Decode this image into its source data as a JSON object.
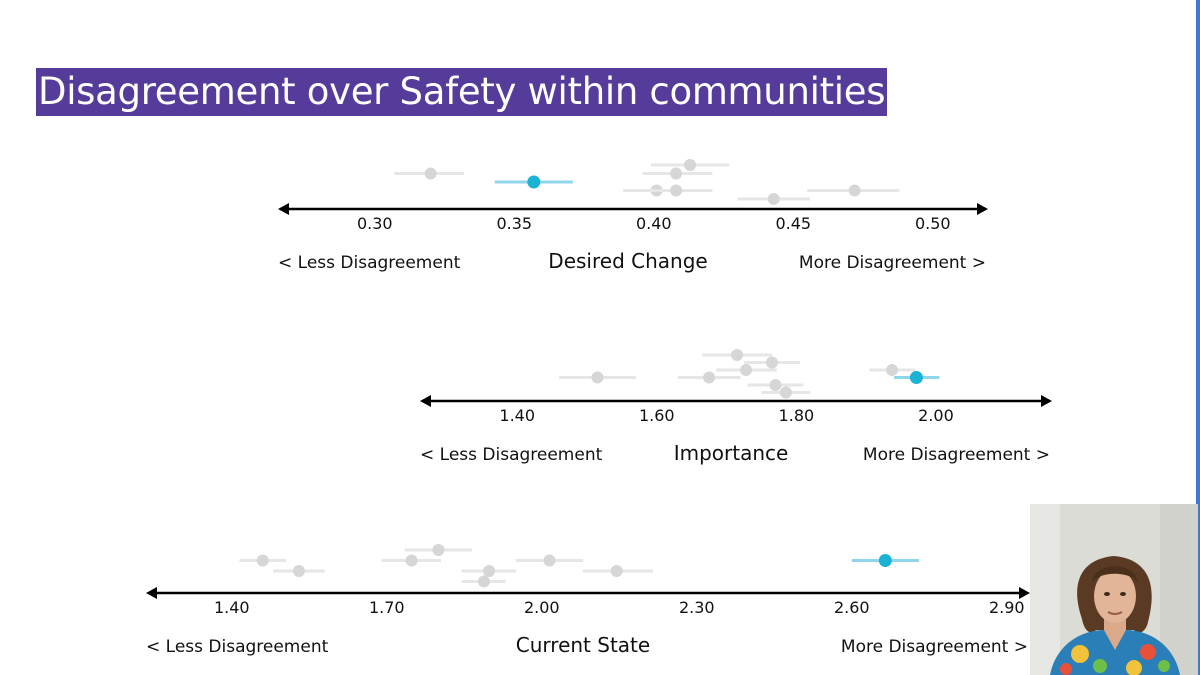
{
  "slide": {
    "title": "Disagreement over Safety within communities"
  },
  "colors": {
    "title_bg": "#553c9a",
    "title_text": "#ffffff",
    "highlight_point": "#1ab3d4",
    "highlight_bar": "#8fd6ea",
    "other_point": "#d6d6d6",
    "other_bar": "#e6e6e6",
    "axis": "#000000"
  },
  "chart_data": [
    {
      "type": "scatter",
      "title": "Desired Change",
      "left_label": "< Less Disagreement",
      "right_label": "More Disagreement >",
      "xlim": [
        0.2653,
        0.5198
      ],
      "ticks": [
        "0.30",
        "0.35",
        "0.40",
        "0.45",
        "0.50"
      ],
      "tick_values": [
        0.3,
        0.35,
        0.4,
        0.45,
        0.5
      ],
      "points": [
        {
          "x": 0.32,
          "lo": 0.307,
          "hi": 0.332,
          "row": 1
        },
        {
          "x": 0.357,
          "lo": 0.343,
          "hi": 0.371,
          "row": 2,
          "highlight": true
        },
        {
          "x": 0.413,
          "lo": 0.399,
          "hi": 0.427,
          "row": 0
        },
        {
          "x": 0.408,
          "lo": 0.396,
          "hi": 0.421,
          "row": 1
        },
        {
          "x": 0.401,
          "lo": 0.389,
          "hi": 0.414,
          "row": 3
        },
        {
          "x": 0.408,
          "lo": 0.396,
          "hi": 0.421,
          "row": 3
        },
        {
          "x": 0.443,
          "lo": 0.43,
          "hi": 0.456,
          "row": 4
        },
        {
          "x": 0.472,
          "lo": 0.455,
          "hi": 0.488,
          "row": 3
        }
      ]
    },
    {
      "type": "scatter",
      "title": "Importance",
      "left_label": "< Less Disagreement",
      "right_label": "More Disagreement >",
      "xlim": [
        1.2607,
        2.1663
      ],
      "ticks": [
        "1.40",
        "1.60",
        "1.80",
        "2.00"
      ],
      "tick_values": [
        1.4,
        1.6,
        1.8,
        2.0
      ],
      "points": [
        {
          "x": 1.715,
          "lo": 1.665,
          "hi": 1.765,
          "row": 0
        },
        {
          "x": 1.765,
          "lo": 1.725,
          "hi": 1.805,
          "row": 1
        },
        {
          "x": 1.728,
          "lo": 1.685,
          "hi": 1.772,
          "row": 2
        },
        {
          "x": 1.937,
          "lo": 1.905,
          "hi": 1.97,
          "row": 2
        },
        {
          "x": 1.515,
          "lo": 1.46,
          "hi": 1.57,
          "row": 3
        },
        {
          "x": 1.675,
          "lo": 1.63,
          "hi": 1.72,
          "row": 3
        },
        {
          "x": 1.972,
          "lo": 1.94,
          "hi": 2.005,
          "row": 3,
          "highlight": true
        },
        {
          "x": 1.77,
          "lo": 1.73,
          "hi": 1.81,
          "row": 4
        },
        {
          "x": 1.785,
          "lo": 1.75,
          "hi": 1.82,
          "row": 5
        }
      ]
    },
    {
      "type": "scatter",
      "title": "Current State",
      "left_label": "< Less Disagreement",
      "right_label": "More Disagreement >",
      "xlim": [
        1.234,
        2.945
      ],
      "ticks": [
        "1.40",
        "1.70",
        "2.00",
        "2.30",
        "2.60",
        "2.90"
      ],
      "tick_values": [
        1.4,
        1.7,
        2.0,
        2.3,
        2.6,
        2.9
      ],
      "points": [
        {
          "x": 1.8,
          "lo": 1.735,
          "hi": 1.865,
          "row": 0
        },
        {
          "x": 1.46,
          "lo": 1.415,
          "hi": 1.505,
          "row": 1
        },
        {
          "x": 1.748,
          "lo": 1.69,
          "hi": 1.805,
          "row": 1
        },
        {
          "x": 2.015,
          "lo": 1.95,
          "hi": 2.08,
          "row": 1
        },
        {
          "x": 2.665,
          "lo": 2.6,
          "hi": 2.73,
          "row": 1,
          "highlight": true
        },
        {
          "x": 1.53,
          "lo": 1.48,
          "hi": 1.58,
          "row": 2
        },
        {
          "x": 1.898,
          "lo": 1.845,
          "hi": 1.95,
          "row": 2
        },
        {
          "x": 2.145,
          "lo": 2.08,
          "hi": 2.215,
          "row": 2
        },
        {
          "x": 1.888,
          "lo": 1.845,
          "hi": 1.93,
          "row": 3
        }
      ]
    }
  ]
}
